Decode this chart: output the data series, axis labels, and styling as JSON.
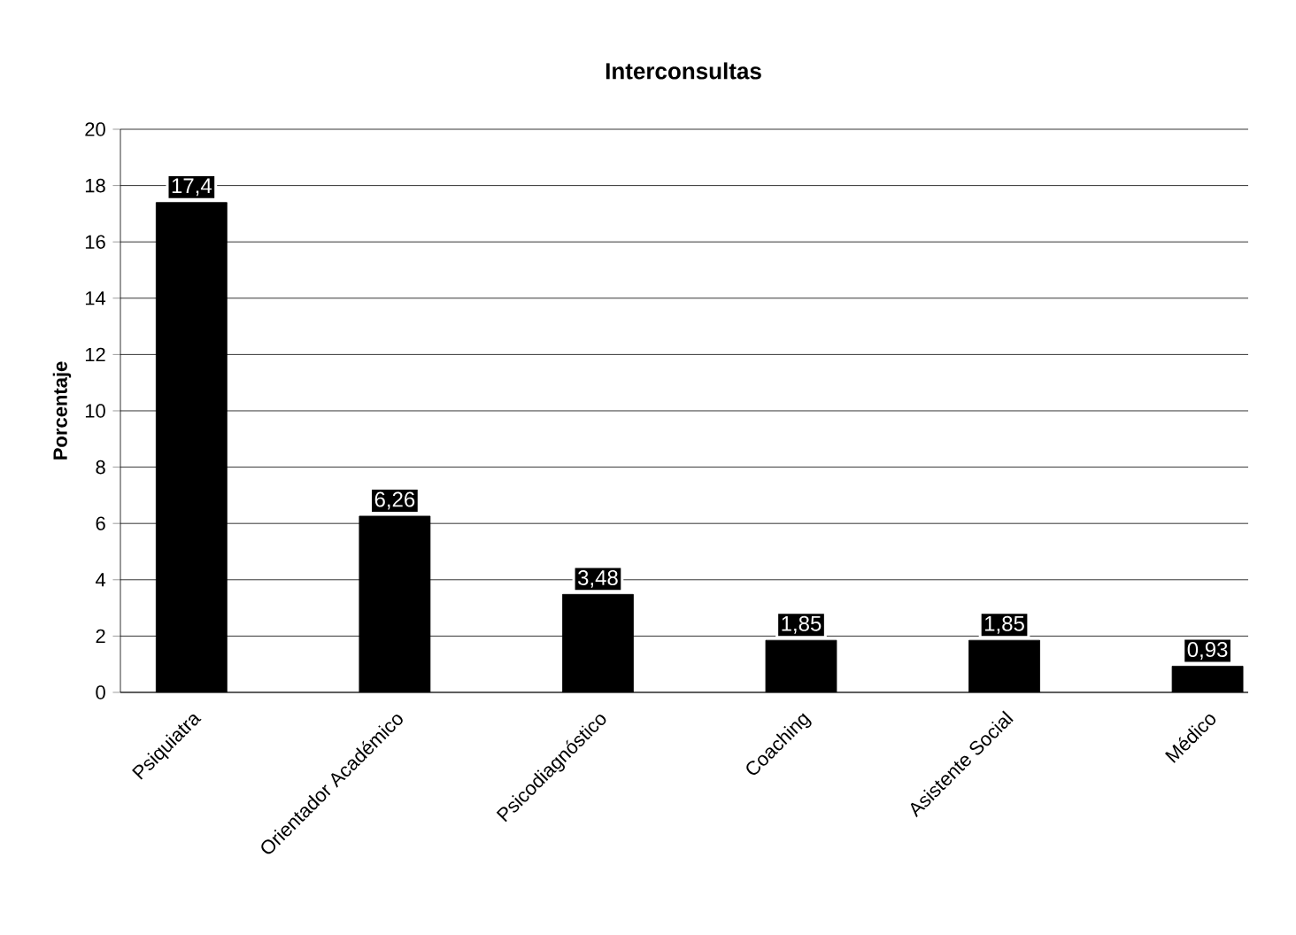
{
  "chart_data": {
    "type": "bar",
    "title": "Interconsultas",
    "ylabel": "Porcentaje",
    "categories": [
      "Psiquiatra",
      "Orientador Académico",
      "Psicodiagnóstico",
      "Coaching",
      "Asistente Social",
      "Médico"
    ],
    "values": [
      17.4,
      6.26,
      3.48,
      1.85,
      1.85,
      0.93
    ],
    "value_labels": [
      "17,4",
      "6,26",
      "3,48",
      "1,85",
      "1,85",
      "0,93"
    ],
    "color": "#000000",
    "ylim": [
      0,
      20
    ],
    "yticks": [
      0,
      2,
      4,
      6,
      8,
      10,
      12,
      14,
      16,
      18,
      20
    ],
    "grid": "y"
  }
}
